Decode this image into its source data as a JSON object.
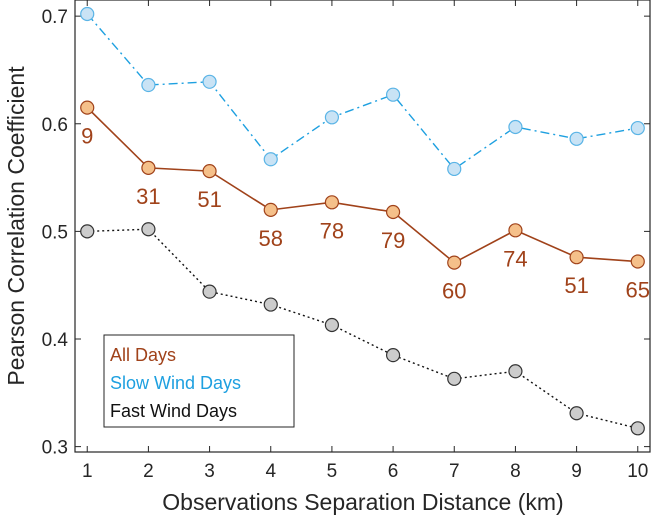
{
  "chart_data": {
    "type": "line",
    "title": "",
    "xlabel": "Observations Separation Distance (km)",
    "ylabel": "Pearson Correlation Coefficient",
    "xlim": [
      0.8,
      10.2
    ],
    "ylim": [
      0.295,
      0.715
    ],
    "x": [
      1,
      2,
      3,
      4,
      5,
      6,
      7,
      8,
      9,
      10
    ],
    "x_ticks": [
      "1",
      "2",
      "3",
      "4",
      "5",
      "6",
      "7",
      "8",
      "9",
      "10"
    ],
    "y_ticks": [
      0.3,
      0.4,
      0.5,
      0.6,
      0.7
    ],
    "y_tick_labels": [
      "0.3",
      "0.4",
      "0.5",
      "0.6",
      "0.7"
    ],
    "grid": false,
    "legend_position": "bottom-left",
    "series": [
      {
        "name": "All Days",
        "values": [
          0.615,
          0.559,
          0.556,
          0.52,
          0.527,
          0.518,
          0.471,
          0.501,
          0.476,
          0.472
        ],
        "color": "#A0421A",
        "marker_fill": "#F5C08A",
        "line_style": "solid",
        "data_labels": [
          "9",
          "31",
          "51",
          "58",
          "78",
          "79",
          "60",
          "74",
          "51",
          "65"
        ]
      },
      {
        "name": "Slow Wind Days",
        "values": [
          0.702,
          0.636,
          0.639,
          0.567,
          0.606,
          0.627,
          0.558,
          0.597,
          0.586,
          0.596
        ],
        "color": "#1EA0E0",
        "marker_fill": "#C9E3F5",
        "line_style": "dashdot"
      },
      {
        "name": "Fast Wind Days",
        "values": [
          0.5,
          0.502,
          0.444,
          0.432,
          0.413,
          0.385,
          0.363,
          0.37,
          0.331,
          0.317
        ],
        "color": "#111111",
        "marker_fill": "#CCCCCC",
        "line_style": "dotted"
      }
    ]
  }
}
